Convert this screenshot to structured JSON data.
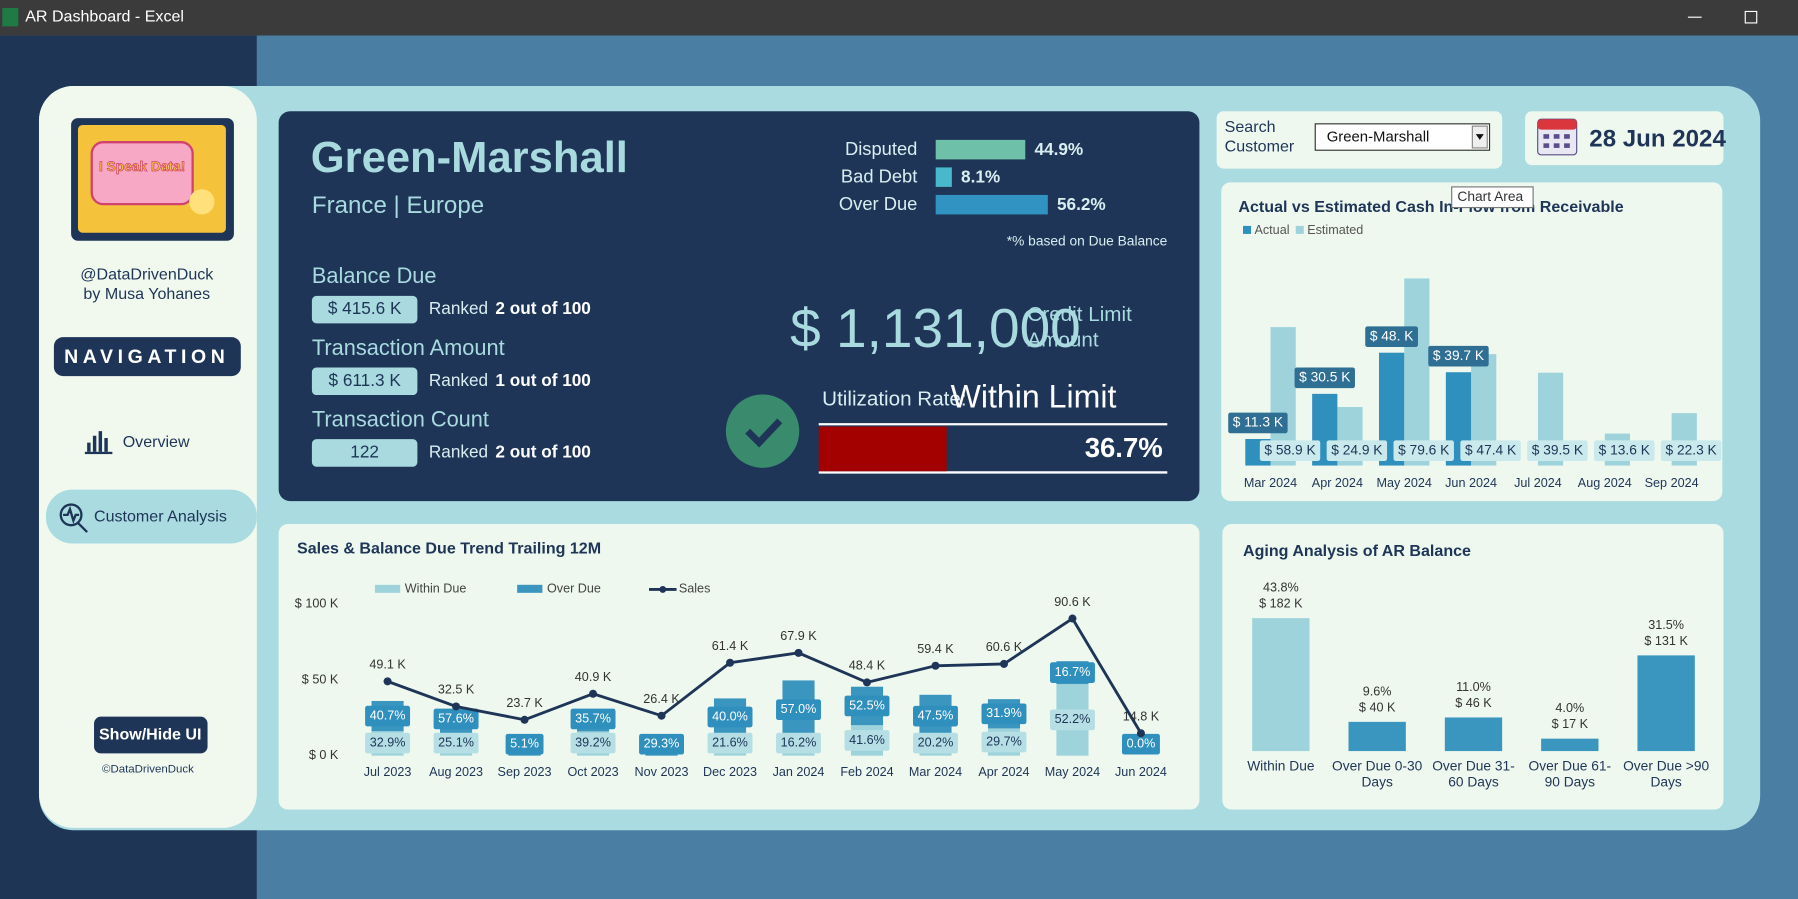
{
  "window": {
    "title": "AR Dashboard - Excel"
  },
  "sidebar": {
    "logo_text": "I Speak Data!",
    "handle": "@DataDrivenDuck",
    "author": "by Musa Yohanes",
    "navigation_label": "NAVIGATION",
    "nav_items": [
      "Overview",
      "Customer Analysis"
    ],
    "toggle_button": "Show/Hide UI",
    "footer": "©DataDrivenDuck"
  },
  "customer": {
    "name": "Green-Marshall",
    "location": "France | Europe",
    "metrics": [
      {
        "label": "Balance Due",
        "value": "$ 415.6 K",
        "rank_prefix": "Ranked",
        "rank": "2 out of 100"
      },
      {
        "label": "Transaction Amount",
        "value": "$ 611.3 K",
        "rank_prefix": "Ranked",
        "rank": "1 out of 100"
      },
      {
        "label": "Transaction Count",
        "value": "122",
        "rank_prefix": "Ranked",
        "rank": "2 out of 100"
      }
    ]
  },
  "risk": {
    "type": "bar",
    "categories": [
      "Disputed",
      "Bad Debt",
      "Over Due"
    ],
    "values": [
      44.9,
      8.1,
      56.2
    ],
    "value_labels": [
      "44.9%",
      "8.1%",
      "56.2%"
    ],
    "colors": [
      "#6fc0a8",
      "#49b8cc",
      "#3193c1"
    ],
    "note": "*% based on Due Balance"
  },
  "credit": {
    "amount": "$ 1,131,000",
    "label": "Credit Limit Amount",
    "utilization_label": "Utilization Rate:",
    "status": "Within Limit",
    "value": 36.7,
    "value_label": "36.7%",
    "color": "#a30000"
  },
  "controls": {
    "search_label": "Search Customer",
    "selected_customer": "Green-Marshall",
    "date": "28 Jun 2024",
    "tooltip": "Chart Area"
  },
  "cashflow_chart": {
    "type": "bar",
    "title": "Actual vs Estimated Cash In-Flow from Receivable",
    "categories": [
      "Mar 2024",
      "Apr 2024",
      "May 2024",
      "Jun 2024",
      "Jul 2024",
      "Aug 2024",
      "Sep 2024"
    ],
    "series": [
      {
        "name": "Actual",
        "color": "#2f8fbd",
        "values": [
          11.3,
          30.5,
          48,
          39.7,
          null,
          null,
          null
        ],
        "value_labels": [
          "$ 11.3 K",
          "$ 30.5 K",
          "$ 48. K",
          "$ 39.7 K",
          null,
          null,
          null
        ]
      },
      {
        "name": "Estimated",
        "color": "#9ed3dc",
        "values": [
          58.9,
          24.9,
          79.6,
          47.4,
          39.5,
          13.6,
          22.3
        ],
        "value_labels": [
          "$ 58.9 K",
          "$ 24.9 K",
          "$ 79.6 K",
          "$ 47.4 K",
          "$ 39.5 K",
          "$ 13.6 K",
          "$ 22.3 K"
        ]
      }
    ]
  },
  "sales_chart": {
    "type": "combo",
    "title": "Sales & Balance Due Trend Trailing 12M",
    "categories": [
      "Jul 2023",
      "Aug 2023",
      "Sep 2023",
      "Oct 2023",
      "Nov 2023",
      "Dec 2023",
      "Jan 2024",
      "Feb 2024",
      "Mar 2024",
      "Apr 2024",
      "May 2024",
      "Jun 2024"
    ],
    "ylim": [
      0,
      100
    ],
    "yticks": [
      {
        "value": 0,
        "label": "$ 0 K"
      },
      {
        "value": 50,
        "label": "$ 50 K"
      },
      {
        "value": 100,
        "label": "$ 100 K"
      }
    ],
    "series": [
      {
        "name": "Within Due",
        "color": "#9ed3dc",
        "values": [
          32.9,
          25.1,
          null,
          39.2,
          null,
          21.6,
          16.2,
          41.6,
          20.2,
          29.7,
          52.2,
          null
        ],
        "value_labels": [
          "32.9%",
          "25.1%",
          null,
          "39.2%",
          null,
          "21.6%",
          "16.2%",
          "41.6%",
          "20.2%",
          "29.7%",
          "52.2%",
          null
        ]
      },
      {
        "name": "Over Due",
        "color": "#3a95bf",
        "values": [
          40.7,
          57.6,
          5.1,
          35.7,
          29.3,
          40.0,
          57.0,
          52.5,
          47.5,
          31.9,
          16.7,
          0.0
        ],
        "value_labels": [
          "40.7%",
          "57.6%",
          "5.1%",
          "35.7%",
          "29.3%",
          "40.0%",
          "57.0%",
          "52.5%",
          "47.5%",
          "31.9%",
          "16.7%",
          "0.0%"
        ]
      },
      {
        "name": "Sales",
        "color": "#1e3557",
        "values": [
          49.1,
          32.5,
          23.7,
          40.9,
          26.4,
          61.4,
          67.9,
          48.4,
          59.4,
          60.6,
          90.6,
          14.8
        ],
        "value_labels": [
          "49.1 K",
          "32.5 K",
          "23.7 K",
          "40.9 K",
          "26.4 K",
          "61.4 K",
          "67.9 K",
          "48.4 K",
          "59.4 K",
          "60.6 K",
          "90.6 K",
          "14.8 K"
        ]
      }
    ]
  },
  "aging_chart": {
    "type": "bar",
    "title": "Aging Analysis of AR Balance",
    "categories": [
      "Within Due",
      "Over Due 0-30 Days",
      "Over Due 31-60 Days",
      "Over Due 61-90 Days",
      "Over Due >90 Days"
    ],
    "values": [
      182,
      40,
      46,
      17,
      131
    ],
    "value_labels": [
      "$ 182 K",
      "$ 40 K",
      "$ 46 K",
      "$ 17 K",
      "$ 131 K"
    ],
    "percents": [
      43.8,
      9.6,
      11.0,
      4.0,
      31.5
    ],
    "percent_labels": [
      "43.8%",
      "9.6%",
      "11.0%",
      "4.0%",
      "31.5%"
    ],
    "colors": [
      "#9ed3dc",
      "#3a95bf",
      "#3a95bf",
      "#3a95bf",
      "#3a95bf"
    ]
  }
}
